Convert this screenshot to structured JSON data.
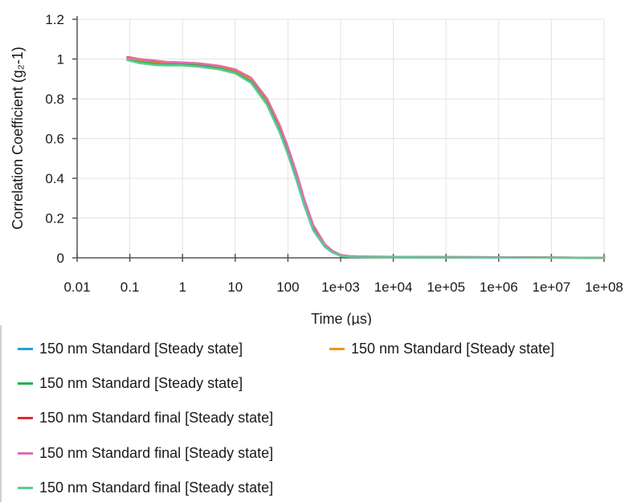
{
  "chart_data": {
    "type": "line",
    "xlabel": "Time (µs)",
    "ylabel": "Correlation Coefficient (g₂-1)",
    "x_scale": "log",
    "xlim": [
      0.01,
      100000000
    ],
    "ylim": [
      0,
      1.2
    ],
    "x_ticks": [
      0.01,
      0.1,
      1,
      10,
      100,
      1000,
      10000,
      100000,
      1000000,
      10000000,
      100000000
    ],
    "x_tick_labels": [
      "0.01",
      "0.1",
      "1",
      "10",
      "100",
      "1e+03",
      "1e+04",
      "1e+05",
      "1e+06",
      "1e+07",
      "1e+08"
    ],
    "y_ticks": [
      0,
      0.2,
      0.4,
      0.6,
      0.8,
      1,
      1.2
    ],
    "y_tick_labels": [
      "0",
      "0.2",
      "0.4",
      "0.6",
      "0.8",
      "1",
      "1.2"
    ],
    "grid": true,
    "legend_position": "bottom",
    "series": [
      {
        "name": "150 nm Standard  [Steady state]",
        "color": "#2a9fd8",
        "x": [
          0.09,
          0.15,
          0.3,
          0.5,
          1,
          2,
          5,
          10,
          20,
          40,
          70,
          100,
          150,
          200,
          300,
          500,
          700,
          1000,
          1500,
          3000,
          10000,
          100000,
          1000000,
          10000000,
          100000000
        ],
        "y": [
          1.0,
          0.99,
          0.98,
          0.975,
          0.975,
          0.97,
          0.955,
          0.935,
          0.89,
          0.78,
          0.64,
          0.53,
          0.39,
          0.28,
          0.15,
          0.06,
          0.03,
          0.012,
          0.006,
          0.004,
          0.003,
          0.002,
          0.001,
          0.001,
          0.0
        ]
      },
      {
        "name": "150 nm Standard  [Steady state]",
        "color": "#f0961e",
        "x": [
          0.09,
          0.15,
          0.3,
          0.5,
          1,
          2,
          5,
          10,
          20,
          40,
          70,
          100,
          150,
          200,
          300,
          500,
          700,
          1000,
          1500,
          3000,
          10000,
          100000,
          1000000,
          10000000,
          100000000
        ],
        "y": [
          1.005,
          0.995,
          0.985,
          0.98,
          0.978,
          0.973,
          0.96,
          0.94,
          0.895,
          0.79,
          0.65,
          0.54,
          0.4,
          0.29,
          0.155,
          0.062,
          0.031,
          0.013,
          0.007,
          0.005,
          0.004,
          0.003,
          0.002,
          0.001,
          0.0
        ]
      },
      {
        "name": "150 nm Standard  [Steady state]",
        "color": "#22b24c",
        "x": [
          0.09,
          0.15,
          0.3,
          0.5,
          1,
          2,
          5,
          10,
          20,
          40,
          70,
          100,
          150,
          200,
          300,
          500,
          700,
          1000,
          1500,
          3000,
          10000,
          100000,
          1000000,
          10000000,
          100000000
        ],
        "y": [
          0.995,
          0.985,
          0.975,
          0.972,
          0.972,
          0.967,
          0.952,
          0.932,
          0.886,
          0.775,
          0.635,
          0.525,
          0.385,
          0.275,
          0.145,
          0.058,
          0.029,
          0.011,
          0.006,
          0.004,
          0.003,
          0.002,
          0.001,
          0.001,
          0.0
        ]
      },
      {
        "name": "150 nm Standard final [Steady state]",
        "color": "#e8262a",
        "x": [
          0.09,
          0.15,
          0.3,
          0.5,
          1,
          2,
          5,
          10,
          20,
          40,
          70,
          100,
          150,
          200,
          300,
          500,
          700,
          1000,
          1500,
          3000,
          10000,
          100000,
          1000000,
          10000000,
          100000000
        ],
        "y": [
          1.01,
          1.0,
          0.99,
          0.985,
          0.982,
          0.978,
          0.965,
          0.947,
          0.905,
          0.8,
          0.665,
          0.555,
          0.415,
          0.3,
          0.165,
          0.068,
          0.034,
          0.014,
          0.008,
          0.006,
          0.005,
          0.004,
          0.003,
          0.002,
          0.0
        ]
      },
      {
        "name": "150 nm Standard final [Steady state]",
        "color": "#dd6fb1",
        "x": [
          0.09,
          0.15,
          0.3,
          0.5,
          1,
          2,
          5,
          10,
          20,
          40,
          70,
          100,
          150,
          200,
          300,
          500,
          700,
          1000,
          1500,
          3000,
          10000,
          100000,
          1000000,
          10000000,
          100000000
        ],
        "y": [
          1.008,
          1.0,
          0.992,
          0.985,
          0.982,
          0.978,
          0.966,
          0.948,
          0.906,
          0.802,
          0.667,
          0.557,
          0.417,
          0.302,
          0.167,
          0.069,
          0.035,
          0.014,
          0.008,
          0.006,
          0.005,
          0.004,
          0.003,
          0.002,
          0.0
        ]
      },
      {
        "name": "150 nm Standard final [Steady state]",
        "color": "#5dc995",
        "x": [
          0.09,
          0.15,
          0.3,
          0.5,
          1,
          2,
          5,
          10,
          20,
          40,
          70,
          100,
          150,
          200,
          300,
          500,
          700,
          1000,
          1500,
          3000,
          10000,
          100000,
          1000000,
          10000000,
          100000000
        ],
        "y": [
          0.995,
          0.98,
          0.97,
          0.968,
          0.968,
          0.962,
          0.948,
          0.928,
          0.88,
          0.77,
          0.63,
          0.52,
          0.38,
          0.27,
          0.14,
          0.055,
          0.027,
          0.01,
          0.005,
          0.004,
          0.003,
          0.002,
          0.001,
          0.001,
          0.0
        ]
      }
    ]
  }
}
